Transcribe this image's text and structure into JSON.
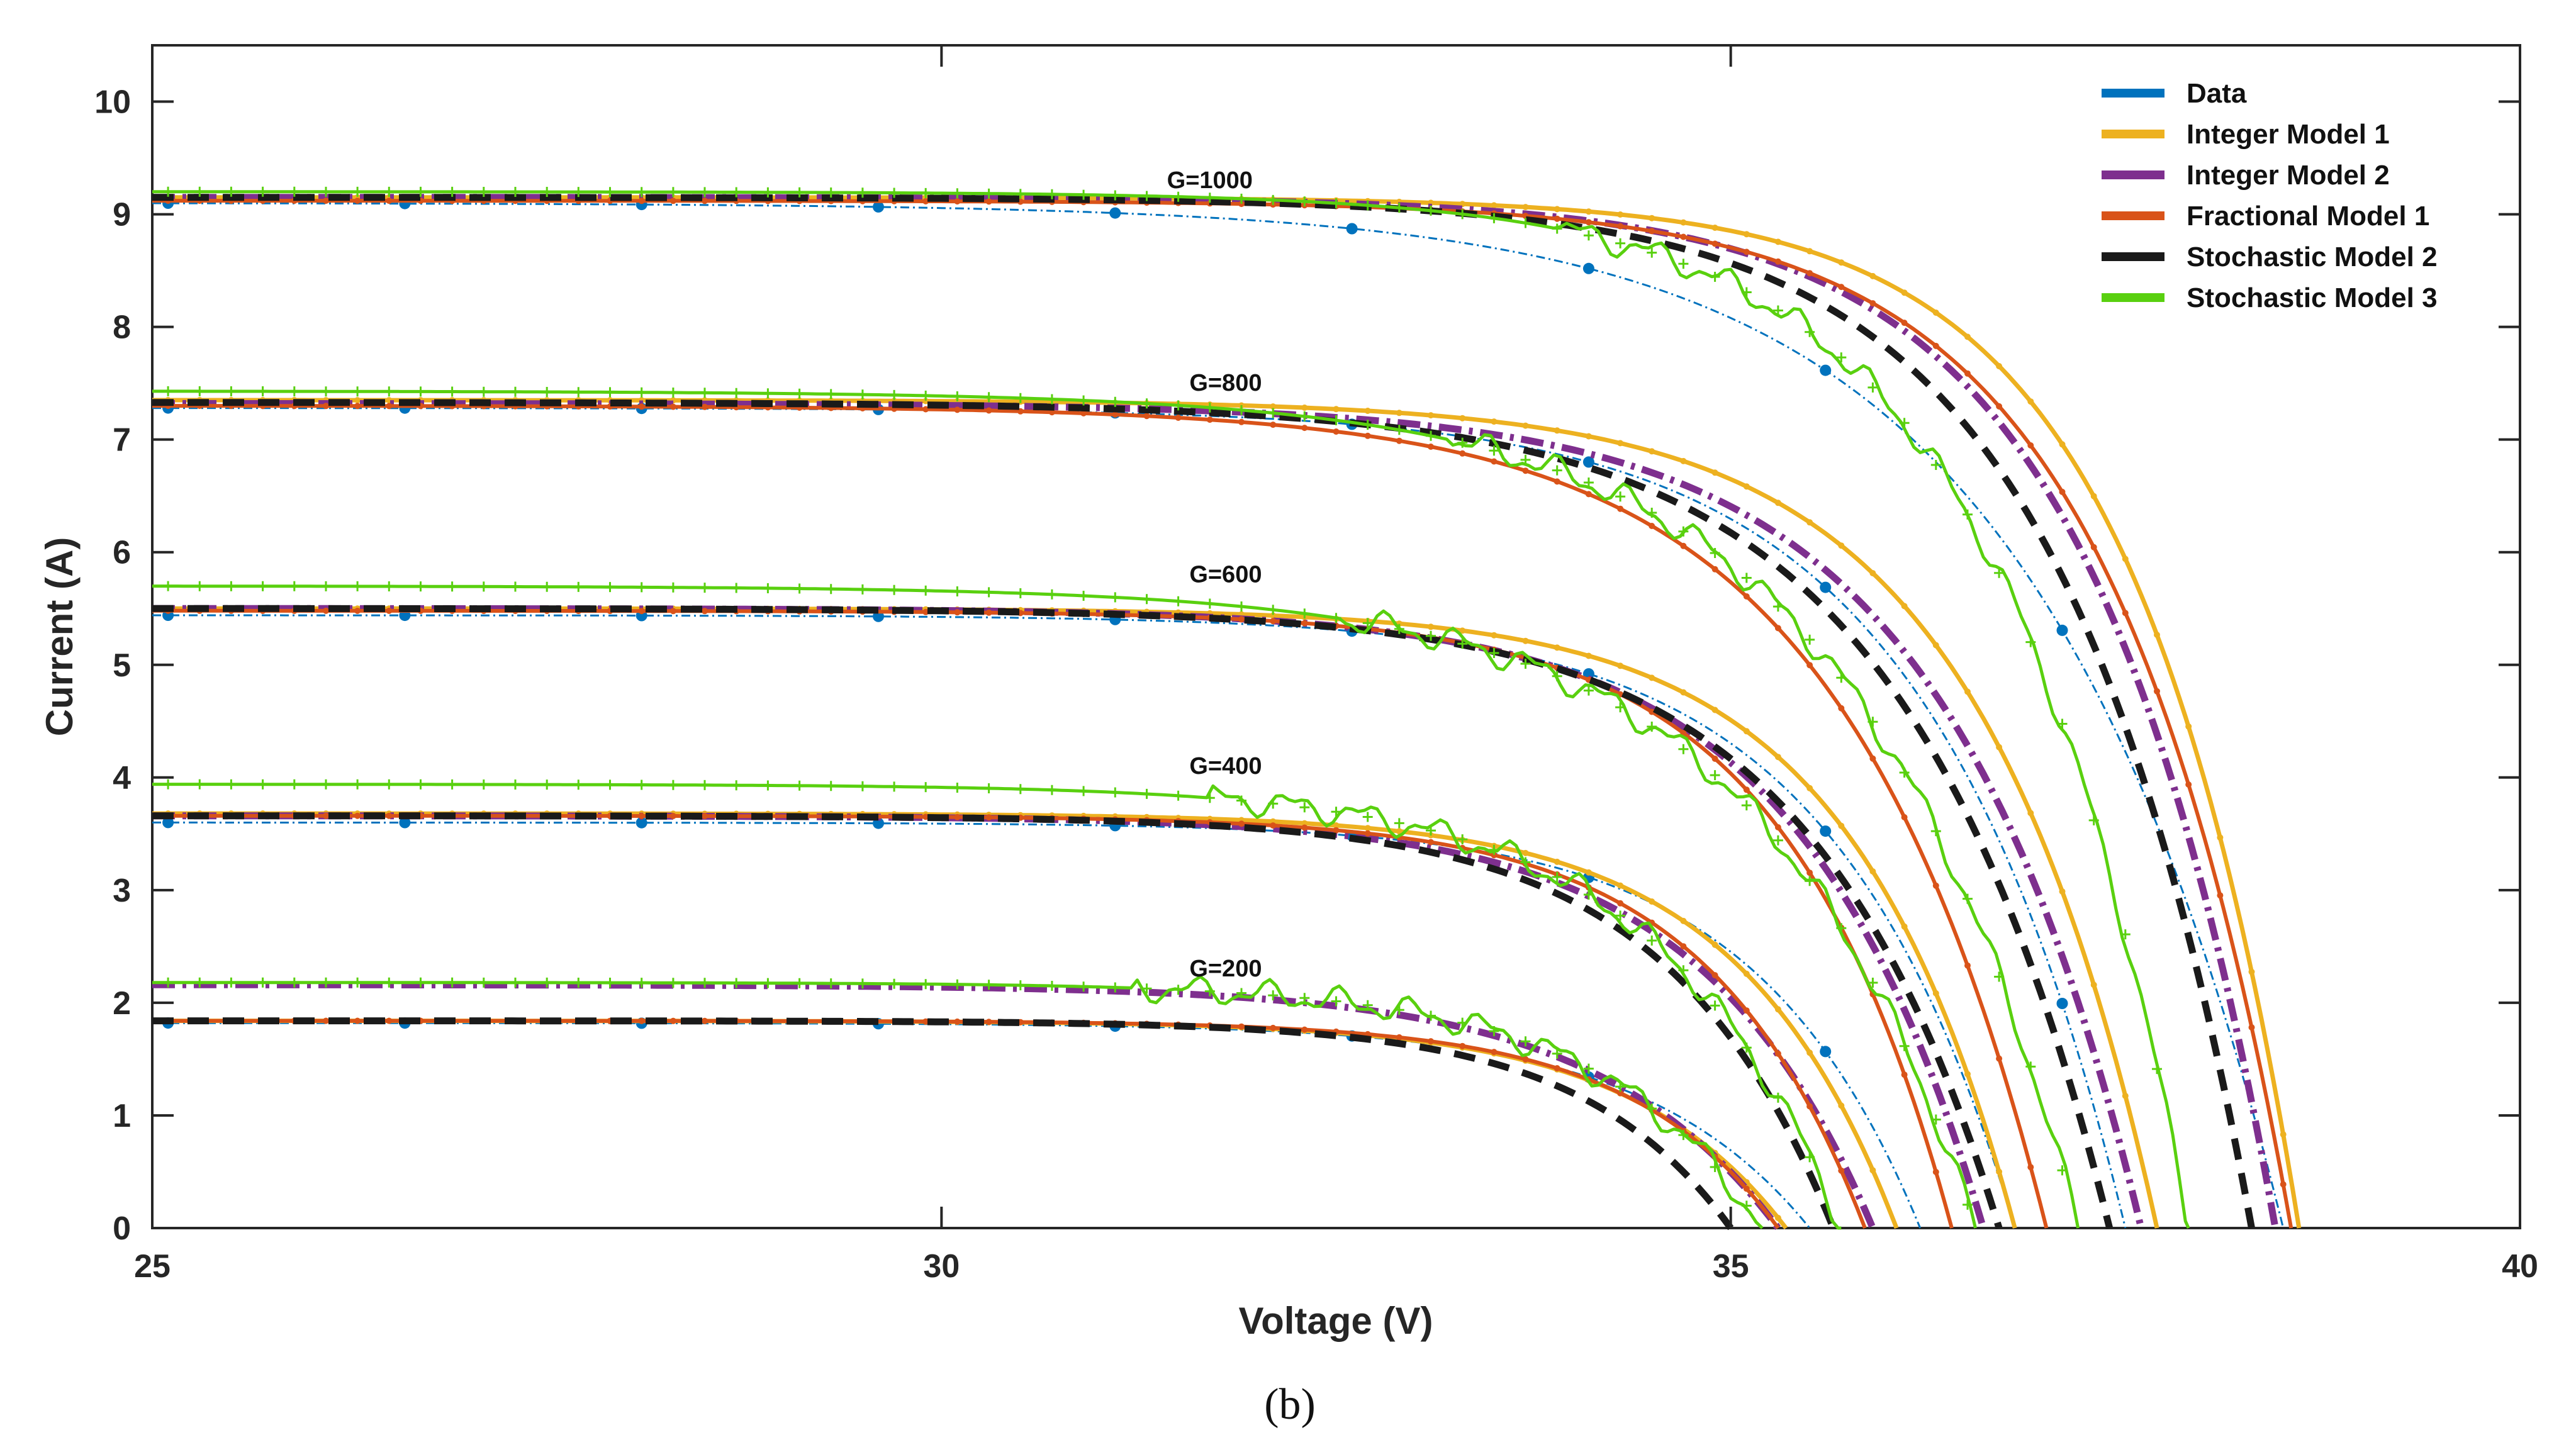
{
  "chart_data": {
    "type": "line",
    "xlabel": "Voltage (V)",
    "ylabel": "Current (A)",
    "xlim": [
      25,
      40
    ],
    "ylim": [
      0,
      10.5
    ],
    "xticks": [
      25,
      30,
      35,
      40
    ],
    "yticks": [
      0,
      1,
      2,
      3,
      4,
      5,
      6,
      7,
      8,
      9,
      10
    ],
    "grid": false,
    "legend_position": "top-right",
    "caption": "(b)",
    "legend": [
      "Data",
      "Integer Model 1",
      "Integer Model 2",
      "Fractional  Model 1",
      "Stochastic Model 2",
      "Stochastic Model 3"
    ],
    "colors": {
      "Data": "#0072BD",
      "Integer Model 1": "#EDB120",
      "Integer Model 2": "#7E2F8E",
      "Fractional  Model 1": "#D95319",
      "Stochastic Model 2": "#1a1a1a",
      "Stochastic Model 3": "#59D00F"
    },
    "curves": [
      {
        "label": "G=1000",
        "label_pos": [
          31.7,
          9.2
        ],
        "Data": {
          "isc": 9.1,
          "voc": 38.5,
          "b": 1.6
        },
        "Integer Model 1": {
          "isc": 9.15,
          "voc": 38.6,
          "b": 1.05
        },
        "Integer Model 2": {
          "isc": 9.15,
          "voc": 38.45,
          "b": 1.15
        },
        "Fractional  Model 1": {
          "isc": 9.12,
          "voc": 38.55,
          "b": 1.15
        },
        "Stochastic Model 2": {
          "isc": 9.15,
          "voc": 38.3,
          "b": 1.2
        },
        "Stochastic Model 3": {
          "isc": 9.2,
          "voc": 37.9,
          "b": 1.2
        }
      },
      {
        "label": "G=800",
        "label_pos": [
          31.8,
          7.4
        ],
        "Data": {
          "isc": 7.28,
          "voc": 37.5,
          "b": 1.25
        },
        "Integer Model 1": {
          "isc": 7.35,
          "voc": 37.7,
          "b": 1.15
        },
        "Integer Model 2": {
          "isc": 7.32,
          "voc": 37.6,
          "b": 1.25
        },
        "Fractional  Model 1": {
          "isc": 7.3,
          "voc": 37.0,
          "b": 1.3
        },
        "Stochastic Model 2": {
          "isc": 7.33,
          "voc": 37.4,
          "b": 1.3
        },
        "Stochastic Model 3": {
          "isc": 7.43,
          "voc": 37.2,
          "b": 1.4
        }
      },
      {
        "label": "G=600",
        "label_pos": [
          31.8,
          5.7
        ],
        "Data": {
          "isc": 5.44,
          "voc": 36.8,
          "b": 1.15
        },
        "Integer Model 1": {
          "isc": 5.5,
          "voc": 36.8,
          "b": 1.05
        },
        "Integer Model 2": {
          "isc": 5.5,
          "voc": 36.6,
          "b": 1.15
        },
        "Fractional  Model 1": {
          "isc": 5.48,
          "voc": 36.4,
          "b": 1.05
        },
        "Stochastic Model 2": {
          "isc": 5.5,
          "voc": 36.7,
          "b": 1.2
        },
        "Stochastic Model 3": {
          "isc": 5.7,
          "voc": 36.55,
          "b": 1.35
        }
      },
      {
        "label": "G=400",
        "label_pos": [
          31.8,
          4.0
        ],
        "Data": {
          "isc": 3.6,
          "voc": 36.2,
          "b": 1.05
        },
        "Integer Model 1": {
          "isc": 3.68,
          "voc": 36.05,
          "b": 1.0
        },
        "Integer Model 2": {
          "isc": 3.66,
          "voc": 35.9,
          "b": 1.1
        },
        "Fractional  Model 1": {
          "isc": 3.66,
          "voc": 35.85,
          "b": 1.0
        },
        "Stochastic Model 2": {
          "isc": 3.66,
          "voc": 35.65,
          "b": 1.05
        },
        "Stochastic Model 3": {
          "isc": 3.94,
          "voc": 35.7,
          "b": 1.15
        }
      },
      {
        "label": "G=200",
        "label_pos": [
          31.8,
          2.2
        ],
        "Data": {
          "isc": 1.82,
          "voc": 35.5,
          "b": 1.05
        },
        "Integer Model 1": {
          "isc": 1.84,
          "voc": 35.35,
          "b": 1.0
        },
        "Integer Model 2": {
          "isc": 2.16,
          "voc": 35.3,
          "b": 1.15
        },
        "Fractional  Model 1": {
          "isc": 1.84,
          "voc": 35.3,
          "b": 0.95
        },
        "Stochastic Model 2": {
          "isc": 1.84,
          "voc": 35.0,
          "b": 0.95
        },
        "Stochastic Model 3": {
          "isc": 2.18,
          "voc": 35.2,
          "b": 1.05
        }
      }
    ]
  }
}
